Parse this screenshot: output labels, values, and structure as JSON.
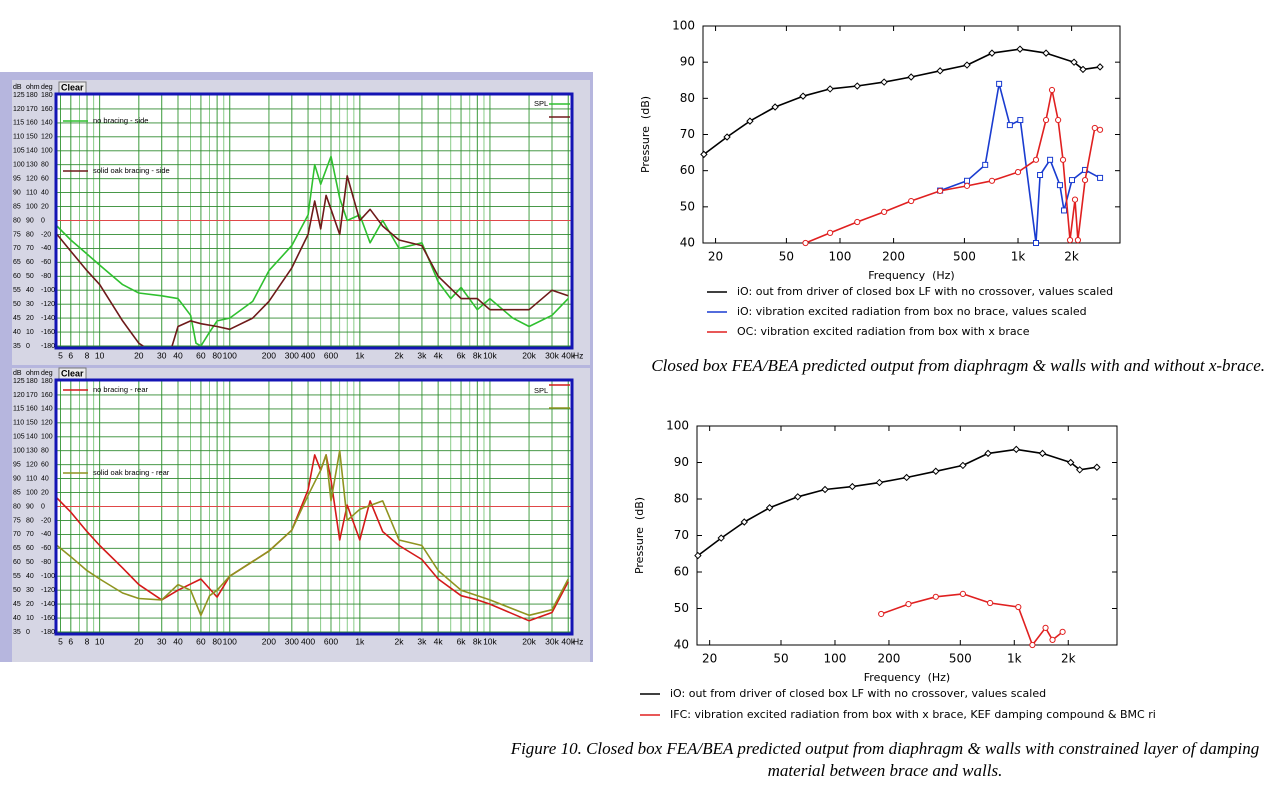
{
  "chart_data": [
    {
      "type": "line",
      "xscale": "log",
      "header": [
        "dB",
        "ohm",
        "deg"
      ],
      "clear_label": "Clear",
      "legend_label": "SPL",
      "x_unit": "Hz",
      "xlim": [
        4.7,
        42000
      ],
      "xticks": [
        5,
        6,
        8,
        10,
        20,
        30,
        40,
        60,
        80,
        100,
        200,
        300,
        400,
        600,
        {
          "value": 1000,
          "label": "1k"
        },
        {
          "value": 2000,
          "label": "2k"
        },
        {
          "value": 3000,
          "label": "3k"
        },
        {
          "value": 4000,
          "label": "4k"
        },
        {
          "value": 6000,
          "label": "6k"
        },
        {
          "value": 8000,
          "label": "8k"
        },
        {
          "value": 10000,
          "label": "10k"
        },
        {
          "value": 20000,
          "label": "20k"
        },
        {
          "value": 30000,
          "label": "30k"
        },
        {
          "value": 40000,
          "label": "40k"
        }
      ],
      "ylim": [
        35,
        125
      ],
      "yticks": [
        35,
        40,
        45,
        50,
        55,
        60,
        65,
        70,
        75,
        80,
        85,
        90,
        95,
        100,
        105,
        110,
        115,
        120,
        125
      ],
      "ohm_lim": [
        0,
        180
      ],
      "ohm_ticks": [
        0,
        10,
        20,
        30,
        40,
        50,
        60,
        70,
        80,
        90,
        100,
        110,
        120,
        130,
        140,
        150,
        160,
        170,
        180
      ],
      "deg_lim": [
        -180,
        180
      ],
      "deg_ticks": [
        -180,
        -160,
        -140,
        -120,
        -100,
        -80,
        -60,
        -40,
        -20,
        0,
        20,
        40,
        60,
        80,
        100,
        120,
        140,
        160,
        180
      ],
      "reference_line": 80,
      "grid": true,
      "minor_grid": true,
      "series": [
        {
          "name": "no bracing - side",
          "color": "#2fc02f",
          "x": [
            4.7,
            6,
            8,
            10,
            15,
            20,
            30,
            40,
            50,
            55,
            60,
            70,
            80,
            100,
            150,
            200,
            300,
            400,
            450,
            500,
            600,
            700,
            800,
            1000,
            1200,
            1500,
            2000,
            3000,
            4000,
            5000,
            6000,
            8000,
            10000,
            15000,
            20000,
            30000,
            40000
          ],
          "values": [
            78,
            73,
            68,
            64,
            57,
            54,
            53,
            52,
            46,
            36,
            35,
            40,
            44,
            45,
            51,
            62,
            71,
            82,
            100,
            93,
            103,
            88,
            80,
            82,
            72,
            80,
            70,
            72,
            58,
            52,
            56,
            48,
            52,
            45,
            42,
            46,
            52
          ]
        },
        {
          "name": "solid oak bracing - side",
          "color": "#6e1a1a",
          "x": [
            4.7,
            6,
            8,
            10,
            15,
            20,
            25,
            35,
            40,
            50,
            60,
            80,
            100,
            150,
            200,
            300,
            400,
            450,
            500,
            550,
            600,
            700,
            800,
            1000,
            1200,
            1500,
            2000,
            3000,
            4000,
            6000,
            8000,
            10000,
            20000,
            30000,
            40000
          ],
          "values": [
            75,
            69,
            62,
            57,
            44,
            36,
            33,
            33,
            42,
            44,
            43,
            42,
            41,
            45,
            51,
            63,
            75,
            87,
            77,
            89,
            84,
            75,
            96,
            80,
            84,
            78,
            73,
            71,
            60,
            52,
            52,
            48,
            48,
            55,
            53
          ]
        }
      ]
    },
    {
      "type": "line",
      "xscale": "log",
      "header": [
        "dB",
        "ohm",
        "deg"
      ],
      "clear_label": "Clear",
      "legend_label": "SPL",
      "x_unit": "Hz",
      "xlim": [
        4.7,
        42000
      ],
      "xticks": [
        5,
        6,
        8,
        10,
        20,
        30,
        40,
        60,
        80,
        100,
        200,
        300,
        400,
        600,
        {
          "value": 1000,
          "label": "1k"
        },
        {
          "value": 2000,
          "label": "2k"
        },
        {
          "value": 3000,
          "label": "3k"
        },
        {
          "value": 4000,
          "label": "4k"
        },
        {
          "value": 6000,
          "label": "6k"
        },
        {
          "value": 8000,
          "label": "8k"
        },
        {
          "value": 10000,
          "label": "10k"
        },
        {
          "value": 20000,
          "label": "20k"
        },
        {
          "value": 30000,
          "label": "30k"
        },
        {
          "value": 40000,
          "label": "40k"
        }
      ],
      "ylim": [
        35,
        125
      ],
      "yticks": [
        35,
        40,
        45,
        50,
        55,
        60,
        65,
        70,
        75,
        80,
        85,
        90,
        95,
        100,
        105,
        110,
        115,
        120,
        125
      ],
      "ohm_lim": [
        0,
        180
      ],
      "ohm_ticks": [
        0,
        10,
        20,
        30,
        40,
        50,
        60,
        70,
        80,
        90,
        100,
        110,
        120,
        130,
        140,
        150,
        160,
        170,
        180
      ],
      "deg_lim": [
        -180,
        180
      ],
      "deg_ticks": [
        -180,
        -160,
        -140,
        -120,
        -100,
        -80,
        -60,
        -40,
        -20,
        0,
        20,
        40,
        60,
        80,
        100,
        120,
        140,
        160,
        180
      ],
      "reference_line": 80,
      "grid": true,
      "minor_grid": true,
      "series": [
        {
          "name": "no bracing - rear",
          "color": "#d41a1a",
          "x": [
            4.7,
            6,
            8,
            10,
            15,
            20,
            30,
            40,
            60,
            80,
            100,
            200,
            300,
            400,
            450,
            500,
            550,
            600,
            700,
            800,
            1000,
            1200,
            1500,
            2000,
            3000,
            4000,
            6000,
            8000,
            10000,
            20000,
            30000,
            40000
          ],
          "values": [
            83,
            78,
            71,
            66,
            58,
            52,
            46.5,
            50,
            54,
            47.5,
            55,
            64,
            71.5,
            86,
            98.5,
            93,
            98.5,
            89.5,
            68,
            80.5,
            68,
            82,
            71,
            66,
            61,
            54,
            48,
            46.5,
            45,
            39,
            42,
            53
          ]
        },
        {
          "name": "solid oak bracing - rear",
          "color": "#8f9420",
          "x": [
            4.7,
            6,
            8,
            10,
            15,
            20,
            30,
            40,
            50,
            60,
            70,
            80,
            100,
            200,
            300,
            400,
            500,
            550,
            600,
            700,
            800,
            1000,
            1500,
            2000,
            3000,
            4000,
            6000,
            10000,
            20000,
            30000,
            40000
          ],
          "values": [
            66,
            62,
            57,
            54,
            49,
            47,
            46.5,
            52,
            50,
            41,
            48,
            50,
            55,
            64,
            71.5,
            84,
            93,
            98.5,
            82,
            100,
            75,
            79,
            82,
            68,
            66,
            57,
            50,
            46.5,
            41,
            43,
            54
          ]
        }
      ]
    },
    {
      "type": "line",
      "xscale": "log",
      "xlabel": "Frequency  (Hz)",
      "ylabel": "Pressure  (dB)",
      "xlim": [
        17,
        3740
      ],
      "xticks": [
        20,
        50,
        100,
        200,
        500,
        {
          "value": 1000,
          "label": "1k"
        },
        {
          "value": 2000,
          "label": "2k"
        }
      ],
      "ylim": [
        40,
        100
      ],
      "yticks": [
        40,
        50,
        60,
        70,
        80,
        90,
        100
      ],
      "caption": "Closed box FEA/BEA predicted output from diaphragm & walls with and without x-brace.",
      "series": [
        {
          "name": "iO: out from driver of closed box LF with no crossover, values scaled",
          "color": "#000000",
          "marker": "diamond",
          "x": [
            17.2,
            23.2,
            31.2,
            43.2,
            62,
            88,
            125,
            177,
            251,
            365,
            517,
            714,
            1026,
            1437,
            2064,
            2317,
            2889
          ],
          "values": [
            64.5,
            69.3,
            73.7,
            77.6,
            80.6,
            82.6,
            83.4,
            84.5,
            85.9,
            87.6,
            89.2,
            92.5,
            93.6,
            92.5,
            90,
            88,
            88.7
          ]
        },
        {
          "name": "iO: vibration excited radiation from box no brace, values scaled",
          "color": "#1a3cd0",
          "marker": "square",
          "x": [
            365,
            517,
            654,
            783,
            900,
            1030,
            1262,
            1330,
            1514,
            1720,
            1813,
            2010,
            2380,
            2890
          ],
          "values": [
            54.5,
            57.2,
            61.6,
            84,
            72.6,
            74,
            40,
            58.8,
            63,
            56,
            49,
            57.4,
            60.2,
            58
          ]
        },
        {
          "name": "OC: vibration excited radiation from box with x brace",
          "color": "#e02020",
          "marker": "circle",
          "x": [
            64,
            88,
            125,
            177,
            251,
            365,
            517,
            714,
            1000,
            1262,
            1437,
            1552,
            1680,
            1790,
            1960,
            2090,
            2170,
            2380,
            2700,
            2890
          ],
          "values": [
            40,
            42.8,
            45.8,
            48.6,
            51.6,
            54.4,
            55.8,
            57.2,
            59.6,
            63,
            74,
            82.3,
            74,
            63,
            40.8,
            52,
            40.8,
            57.4,
            71.8,
            71.3
          ]
        }
      ]
    },
    {
      "type": "line",
      "xscale": "log",
      "xlabel": "Frequency  (Hz)",
      "ylabel": "Pressure  (dB)",
      "xlim": [
        17,
        3740
      ],
      "xticks": [
        20,
        50,
        100,
        200,
        500,
        {
          "value": 1000,
          "label": "1k"
        },
        {
          "value": 2000,
          "label": "2k"
        }
      ],
      "ylim": [
        40,
        100
      ],
      "yticks": [
        40,
        50,
        60,
        70,
        80,
        90,
        100
      ],
      "caption": "Figure 10. Closed box FEA/BEA predicted output from diaphragm & walls with constrained layer of damping material between brace and walls.",
      "series": [
        {
          "name": "iO: out from driver of closed box LF with no crossover, values scaled",
          "color": "#000000",
          "marker": "diamond",
          "x": [
            17.2,
            23.2,
            31.2,
            43.2,
            62,
            88,
            125,
            177,
            251,
            365,
            517,
            714,
            1026,
            1437,
            2064,
            2317,
            2889
          ],
          "values": [
            64.5,
            69.3,
            73.7,
            77.6,
            80.6,
            82.6,
            83.4,
            84.5,
            85.9,
            87.6,
            89.2,
            92.5,
            93.6,
            92.5,
            90,
            88,
            88.7
          ]
        },
        {
          "name": "IFC: vibration excited radiation from box with x brace, KEF damping compound & BMC ri",
          "color": "#e02020",
          "marker": "circle",
          "x": [
            181,
            257,
            365,
            517,
            733,
            1053,
            1262,
            1494,
            1634,
            1860
          ],
          "values": [
            48.5,
            51.2,
            53.2,
            54,
            51.5,
            50.4,
            40,
            44.7,
            41.4,
            43.6
          ]
        }
      ]
    }
  ]
}
